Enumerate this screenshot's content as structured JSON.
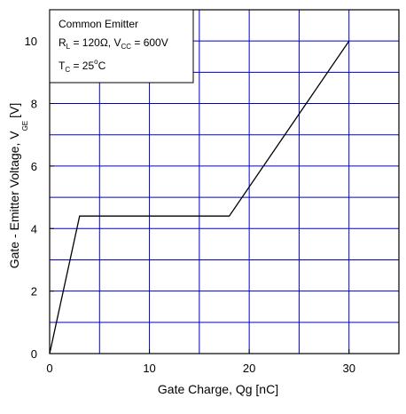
{
  "chart_data": {
    "type": "line",
    "xlabel": "Gate Charge, Qg [nC]",
    "ylabel_main": "Gate - Emitter Voltage, V",
    "ylabel_sub": "GE",
    "ylabel_unit": "[V]",
    "xlim": [
      0,
      35
    ],
    "ylim": [
      0,
      11
    ],
    "grid": true,
    "x_ticks": [
      {
        "value": 0,
        "label": "0"
      },
      {
        "value": 10,
        "label": "10"
      },
      {
        "value": 20,
        "label": "20"
      },
      {
        "value": 30,
        "label": "30"
      }
    ],
    "y_ticks": [
      {
        "value": 0,
        "label": "0"
      },
      {
        "value": 2,
        "label": "2"
      },
      {
        "value": 4,
        "label": "4"
      },
      {
        "value": 6,
        "label": "6"
      },
      {
        "value": 8,
        "label": "8"
      },
      {
        "value": 10,
        "label": "10"
      }
    ],
    "x_grid": [
      5,
      10,
      15,
      20,
      25,
      30
    ],
    "y_grid": [
      1,
      2,
      3,
      4,
      5,
      6,
      7,
      8,
      9,
      10
    ],
    "series": [
      {
        "x": [
          0,
          3,
          18,
          30
        ],
        "y": [
          0,
          4.4,
          4.4,
          10
        ]
      }
    ],
    "legend": {
      "line1": "Common Emitter",
      "line2_a": "R",
      "line2_a_sub": "L",
      "line2_b": " = 120Ω, V",
      "line2_b_sub": "CC",
      "line2_c": " = 600V",
      "line3_a": "T",
      "line3_a_sub": "C",
      "line3_b": " = 25",
      "line3_b_sup": "o",
      "line3_c": "C",
      "placement": "top-left"
    },
    "colors": {
      "grid": "#0000cc",
      "line": "#000000",
      "frame": "#000000"
    }
  }
}
